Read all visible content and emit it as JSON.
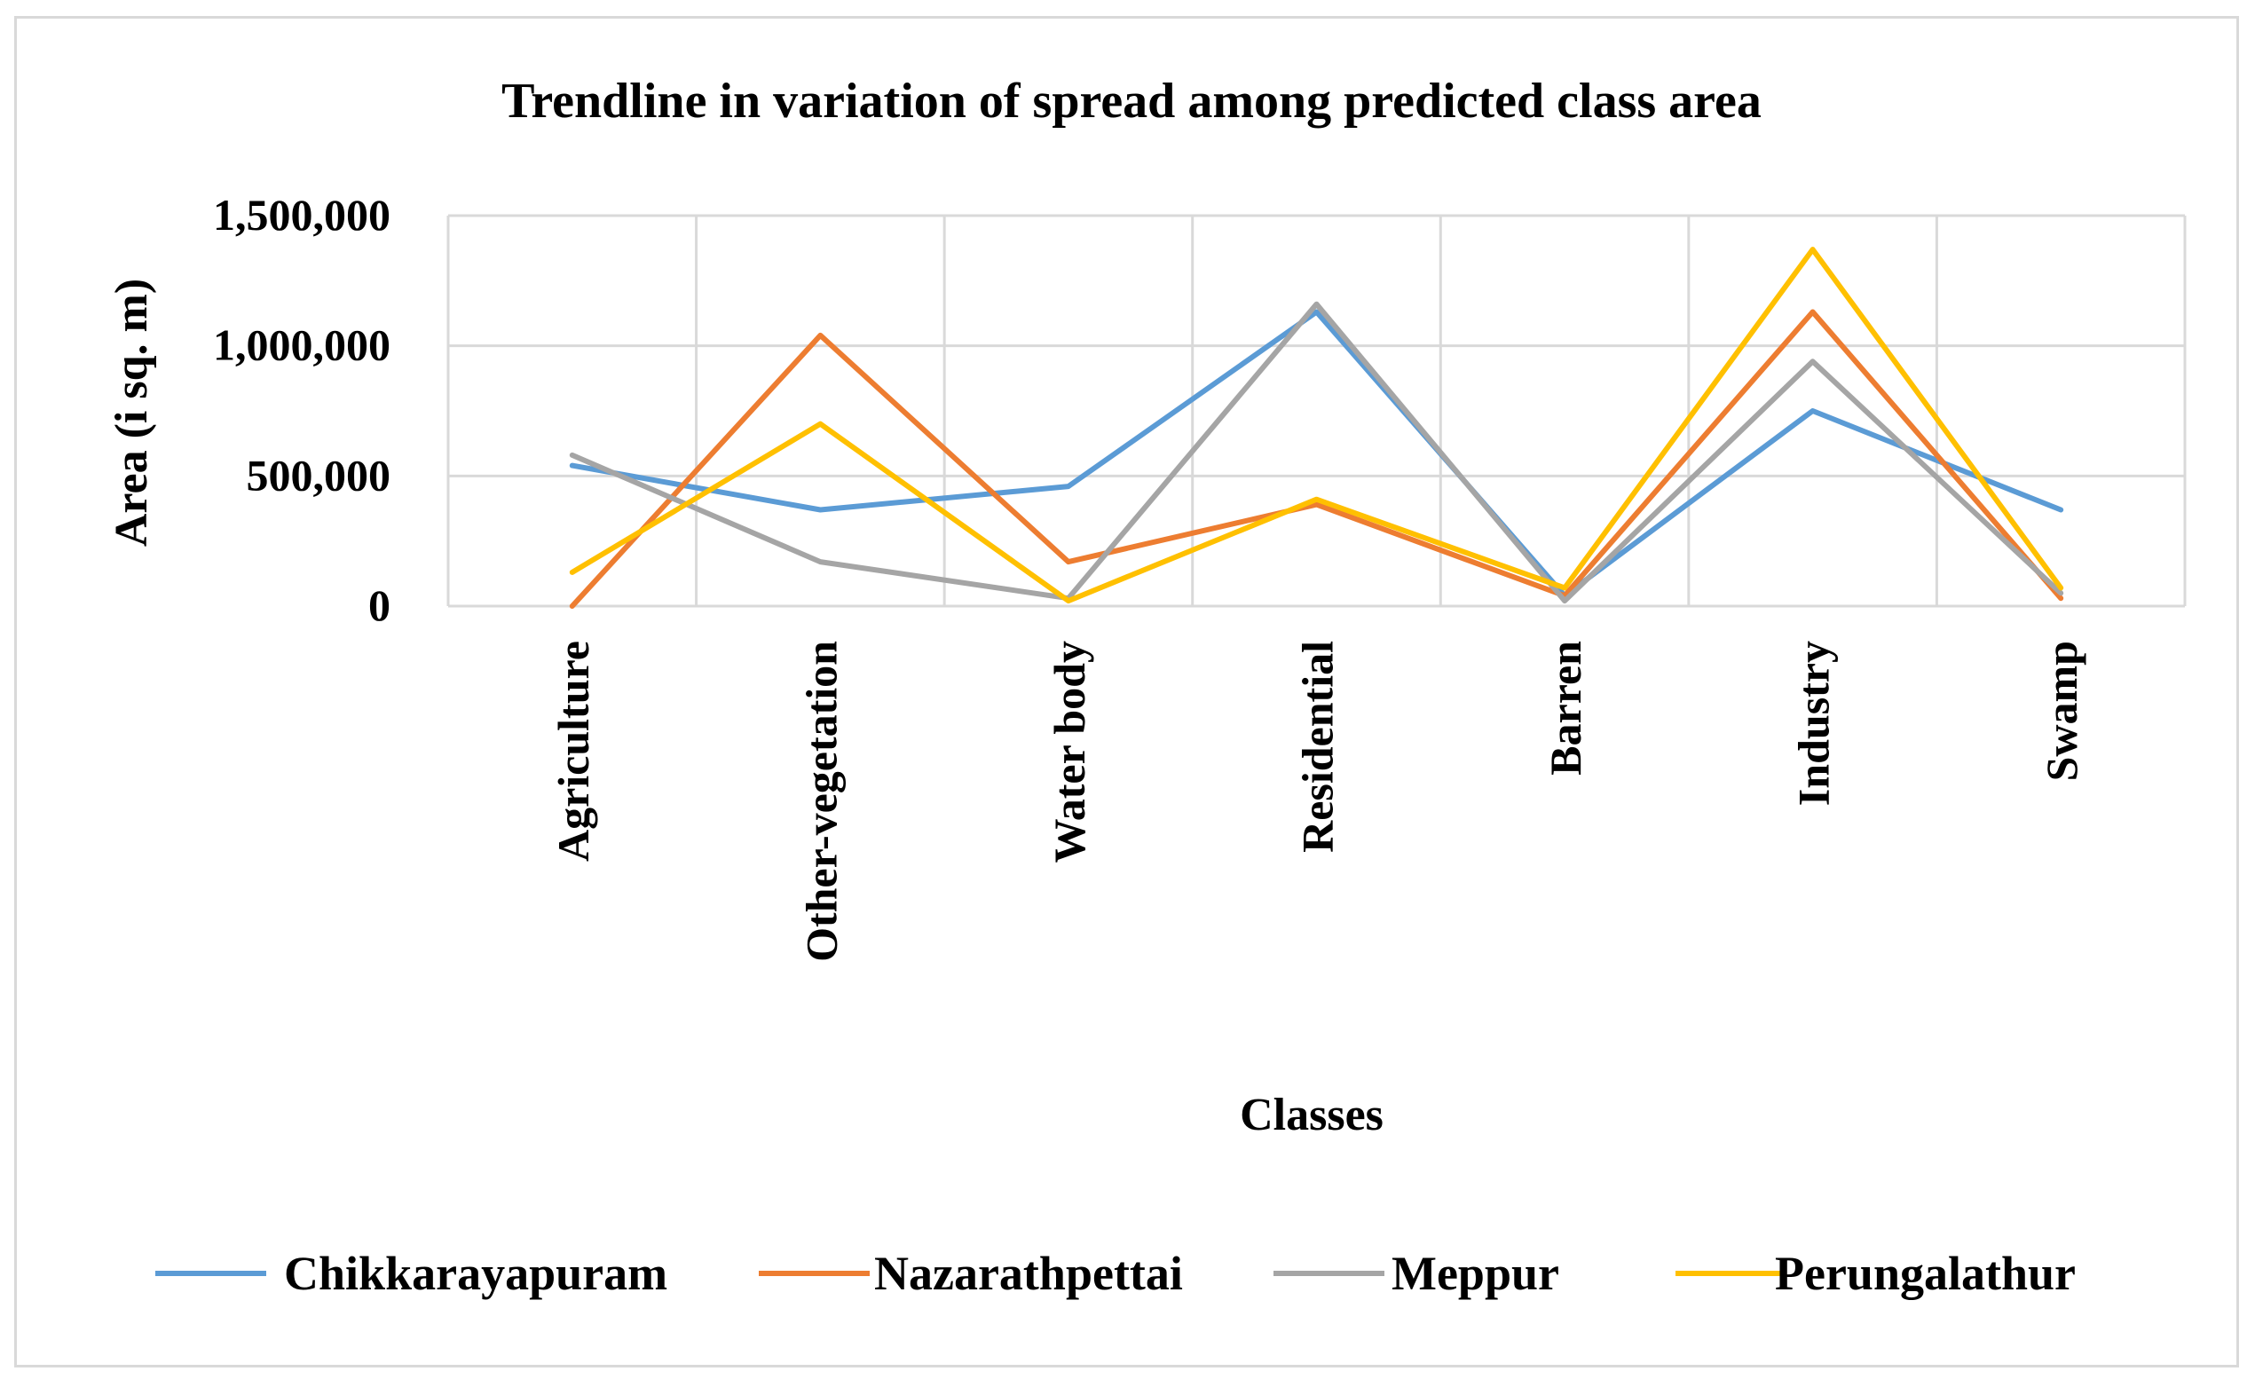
{
  "chart_data": {
    "type": "line",
    "title": "Trendline in variation of spread among predicted class area",
    "xlabel": "Classes",
    "ylabel": "Area (i sq. m)",
    "categories": [
      "Agriculture",
      "Other-vegetation",
      "Water body",
      "Residential",
      "Barren",
      "Industry",
      "Swamp"
    ],
    "ylim": [
      0,
      1500000
    ],
    "yticks": [
      0,
      500000,
      1000000,
      1500000
    ],
    "ytick_labels": [
      "0",
      "500,000",
      "1,000,000",
      "1,500,000"
    ],
    "grid": true,
    "legend_position": "bottom",
    "series": [
      {
        "name": "Chikkarayapuram",
        "color": "#5B9BD5",
        "values": [
          540000,
          370000,
          460000,
          1130000,
          40000,
          750000,
          370000
        ]
      },
      {
        "name": "Nazarathpettai",
        "color": "#ED7D31",
        "values": [
          0,
          1040000,
          170000,
          390000,
          40000,
          1130000,
          30000
        ]
      },
      {
        "name": "Meppur",
        "color": "#A5A5A5",
        "values": [
          580000,
          170000,
          30000,
          1160000,
          20000,
          940000,
          50000
        ]
      },
      {
        "name": "Perungalathur",
        "color": "#FFC000",
        "values": [
          130000,
          700000,
          20000,
          410000,
          70000,
          1370000,
          70000
        ]
      }
    ]
  }
}
